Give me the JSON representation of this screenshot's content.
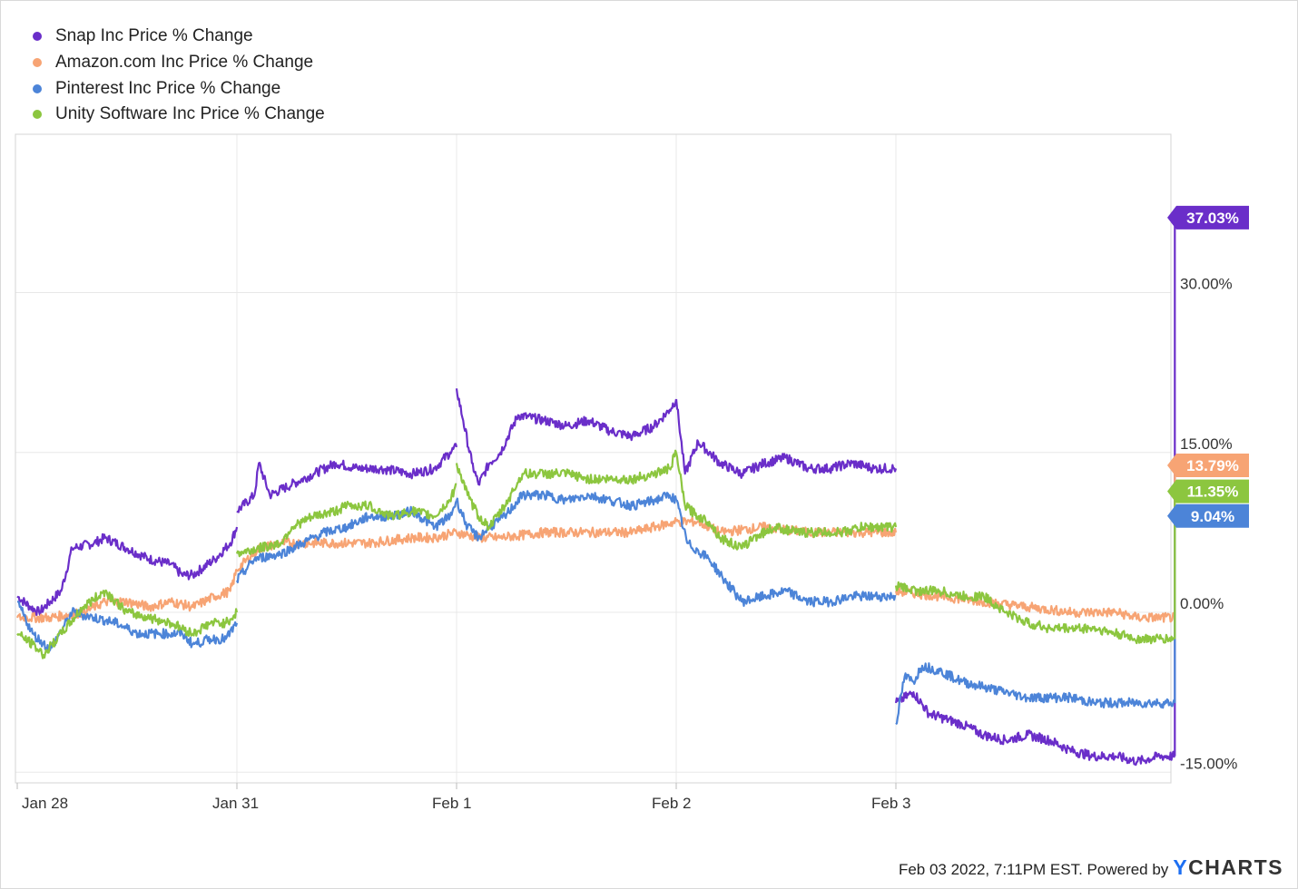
{
  "chart_data": {
    "type": "line",
    "title": "",
    "xlabel": "",
    "ylabel": "",
    "x_ticks": [
      "Jan 28",
      "Jan 31",
      "Feb 1",
      "Feb 2",
      "Feb 3"
    ],
    "y_ticks": [
      {
        "value": 30,
        "label": "30.00%"
      },
      {
        "value": 15,
        "label": "15.00%"
      },
      {
        "value": 0,
        "label": "0.00%"
      },
      {
        "value": -15,
        "label": "-15.00%"
      }
    ],
    "ylim": [
      -16,
      45
    ],
    "grid": true,
    "legend_position": "top-left",
    "series": [
      {
        "name": "Snap Inc Price % Change",
        "color": "#6a2ec9",
        "end_label": "37.03%",
        "segments": [
          [
            [
              0,
              1.5
            ],
            [
              0.06,
              0.5
            ],
            [
              0.1,
              0
            ],
            [
              0.2,
              2
            ],
            [
              0.25,
              6
            ],
            [
              0.35,
              6.5
            ],
            [
              0.4,
              7
            ],
            [
              0.5,
              6
            ],
            [
              0.6,
              5
            ],
            [
              0.7,
              4.5
            ],
            [
              0.75,
              3.5
            ],
            [
              0.8,
              3.5
            ],
            [
              0.9,
              5
            ],
            [
              0.97,
              6.5
            ],
            [
              1.0,
              8
            ]
          ],
          [
            [
              1.0,
              9.5
            ],
            [
              1.08,
              11
            ],
            [
              1.1,
              14
            ],
            [
              1.15,
              11
            ],
            [
              1.25,
              12
            ],
            [
              1.35,
              13
            ],
            [
              1.45,
              14
            ],
            [
              1.55,
              13.5
            ],
            [
              1.65,
              13.5
            ],
            [
              1.8,
              13
            ],
            [
              1.9,
              13.5
            ],
            [
              1.97,
              15
            ],
            [
              2.0,
              15.5
            ]
          ],
          [
            [
              2.0,
              21
            ],
            [
              2.03,
              18
            ],
            [
              2.07,
              14
            ],
            [
              2.1,
              12
            ],
            [
              2.15,
              14
            ],
            [
              2.2,
              15
            ],
            [
              2.28,
              18.5
            ],
            [
              2.4,
              18
            ],
            [
              2.5,
              17.5
            ],
            [
              2.6,
              18
            ],
            [
              2.7,
              17
            ],
            [
              2.8,
              16.5
            ],
            [
              2.9,
              17.5
            ],
            [
              2.97,
              19
            ],
            [
              3.0,
              20
            ]
          ],
          [
            [
              3.0,
              20
            ],
            [
              3.04,
              13
            ],
            [
              3.1,
              16
            ],
            [
              3.2,
              14
            ],
            [
              3.3,
              13
            ],
            [
              3.4,
              14
            ],
            [
              3.5,
              14.5
            ],
            [
              3.6,
              13.5
            ],
            [
              3.7,
              13.5
            ],
            [
              3.8,
              14
            ],
            [
              3.9,
              13.5
            ],
            [
              4.0,
              13.5
            ]
          ],
          [
            [
              4.0,
              -8.5
            ],
            [
              4.08,
              -7.5
            ],
            [
              4.15,
              -9.5
            ],
            [
              4.3,
              -10.5
            ],
            [
              4.4,
              -11.5
            ],
            [
              4.5,
              -12
            ],
            [
              4.6,
              -11.5
            ],
            [
              4.7,
              -12
            ],
            [
              4.8,
              -13
            ],
            [
              4.9,
              -13.5
            ],
            [
              5.0,
              -13.5
            ],
            [
              5.1,
              -14
            ],
            [
              5.2,
              -13.5
            ],
            [
              5.27,
              -13.5
            ]
          ],
          [
            [
              5.27,
              -13.5
            ],
            [
              5.27,
              37.03
            ],
            [
              5.28,
              37.03
            ]
          ]
        ]
      },
      {
        "name": "Amazon.com Inc Price % Change",
        "color": "#f7a474",
        "end_label": "13.79%",
        "segments": [
          [
            [
              0,
              -0.5
            ],
            [
              0.15,
              -0.5
            ],
            [
              0.3,
              0
            ],
            [
              0.4,
              1
            ],
            [
              0.5,
              1
            ],
            [
              0.6,
              0.5
            ],
            [
              0.7,
              1
            ],
            [
              0.8,
              0.5
            ],
            [
              0.9,
              1.5
            ],
            [
              0.97,
              2
            ],
            [
              1.0,
              4
            ]
          ],
          [
            [
              1.0,
              4
            ],
            [
              1.1,
              6
            ],
            [
              1.2,
              6.5
            ],
            [
              1.3,
              6.5
            ],
            [
              1.4,
              6.5
            ],
            [
              1.6,
              6.5
            ],
            [
              1.8,
              7
            ],
            [
              1.9,
              7
            ],
            [
              2.0,
              7.5
            ]
          ],
          [
            [
              2.0,
              7.5
            ],
            [
              2.1,
              7
            ],
            [
              2.2,
              7
            ],
            [
              2.4,
              7.5
            ],
            [
              2.6,
              7.5
            ],
            [
              2.8,
              7.5
            ],
            [
              2.9,
              8
            ],
            [
              3.0,
              8.5
            ]
          ],
          [
            [
              3.0,
              8.5
            ],
            [
              3.1,
              8.5
            ],
            [
              3.2,
              7.5
            ],
            [
              3.4,
              8
            ],
            [
              3.6,
              7.5
            ],
            [
              3.8,
              7.5
            ],
            [
              3.9,
              7.5
            ],
            [
              4.0,
              7.5
            ]
          ],
          [
            [
              4.0,
              2
            ],
            [
              4.2,
              1.5
            ],
            [
              4.4,
              1
            ],
            [
              4.6,
              0.5
            ],
            [
              4.8,
              0
            ],
            [
              5.0,
              0
            ],
            [
              5.1,
              -0.5
            ],
            [
              5.2,
              -0.5
            ],
            [
              5.27,
              -0.5
            ]
          ],
          [
            [
              5.27,
              -0.5
            ],
            [
              5.27,
              13.79
            ],
            [
              5.28,
              13.79
            ]
          ]
        ]
      },
      {
        "name": "Pinterest Inc Price % Change",
        "color": "#4c84d8",
        "end_label": "9.04%",
        "segments": [
          [
            [
              0,
              1
            ],
            [
              0.07,
              -2
            ],
            [
              0.15,
              -3.5
            ],
            [
              0.25,
              0
            ],
            [
              0.35,
              -0.5
            ],
            [
              0.45,
              -1
            ],
            [
              0.55,
              -2
            ],
            [
              0.65,
              -2
            ],
            [
              0.75,
              -2
            ],
            [
              0.8,
              -3
            ],
            [
              0.88,
              -2.5
            ],
            [
              0.95,
              -2.5
            ],
            [
              1.0,
              -1
            ]
          ],
          [
            [
              1.0,
              3
            ],
            [
              1.08,
              5
            ],
            [
              1.2,
              5.5
            ],
            [
              1.3,
              6.5
            ],
            [
              1.4,
              7.5
            ],
            [
              1.5,
              8
            ],
            [
              1.6,
              9
            ],
            [
              1.7,
              9
            ],
            [
              1.8,
              9.5
            ],
            [
              1.9,
              8
            ],
            [
              1.97,
              9
            ],
            [
              2.0,
              10.5
            ]
          ],
          [
            [
              2.0,
              10.5
            ],
            [
              2.05,
              8
            ],
            [
              2.1,
              7
            ],
            [
              2.15,
              8
            ],
            [
              2.22,
              9
            ],
            [
              2.3,
              11
            ],
            [
              2.4,
              11
            ],
            [
              2.5,
              10.5
            ],
            [
              2.6,
              11
            ],
            [
              2.7,
              10.5
            ],
            [
              2.8,
              10
            ],
            [
              2.9,
              10.5
            ],
            [
              2.97,
              11
            ],
            [
              3.0,
              10.5
            ]
          ],
          [
            [
              3.0,
              10.5
            ],
            [
              3.05,
              6.5
            ],
            [
              3.15,
              5
            ],
            [
              3.22,
              3
            ],
            [
              3.3,
              1
            ],
            [
              3.4,
              1.5
            ],
            [
              3.5,
              2
            ],
            [
              3.6,
              1
            ],
            [
              3.7,
              1
            ],
            [
              3.8,
              1.5
            ],
            [
              3.9,
              1.5
            ],
            [
              4.0,
              1.5
            ]
          ],
          [
            [
              4.0,
              -10.5
            ],
            [
              4.04,
              -6
            ],
            [
              4.08,
              -6.5
            ],
            [
              4.12,
              -5
            ],
            [
              4.2,
              -5.5
            ],
            [
              4.3,
              -6.5
            ],
            [
              4.4,
              -7
            ],
            [
              4.5,
              -7.5
            ],
            [
              4.6,
              -8
            ],
            [
              4.7,
              -8
            ],
            [
              4.8,
              -8
            ],
            [
              4.9,
              -8.5
            ],
            [
              5.0,
              -8.5
            ],
            [
              5.1,
              -8.5
            ],
            [
              5.2,
              -8.5
            ],
            [
              5.27,
              -8.5
            ]
          ],
          [
            [
              5.27,
              -8.5
            ],
            [
              5.27,
              9.04
            ],
            [
              5.28,
              9.04
            ]
          ]
        ]
      },
      {
        "name": "Unity Software Inc Price % Change",
        "color": "#8cc63f",
        "end_label": "11.35%",
        "segments": [
          [
            [
              0,
              -2
            ],
            [
              0.07,
              -3
            ],
            [
              0.12,
              -4
            ],
            [
              0.2,
              -2
            ],
            [
              0.3,
              0.5
            ],
            [
              0.4,
              2
            ],
            [
              0.5,
              0
            ],
            [
              0.6,
              -0.5
            ],
            [
              0.7,
              -1
            ],
            [
              0.8,
              -2
            ],
            [
              0.88,
              -1
            ],
            [
              0.95,
              -1
            ],
            [
              1.0,
              0
            ]
          ],
          [
            [
              1.0,
              5.5
            ],
            [
              1.1,
              6
            ],
            [
              1.2,
              6.5
            ],
            [
              1.25,
              8
            ],
            [
              1.35,
              9
            ],
            [
              1.45,
              9.5
            ],
            [
              1.5,
              10
            ],
            [
              1.6,
              10
            ],
            [
              1.7,
              9
            ],
            [
              1.8,
              9.5
            ],
            [
              1.9,
              9
            ],
            [
              1.97,
              10.5
            ],
            [
              2.0,
              12
            ]
          ],
          [
            [
              2.0,
              14
            ],
            [
              2.05,
              11
            ],
            [
              2.1,
              9
            ],
            [
              2.15,
              8
            ],
            [
              2.22,
              10
            ],
            [
              2.3,
              13
            ],
            [
              2.4,
              13
            ],
            [
              2.5,
              13
            ],
            [
              2.6,
              12.5
            ],
            [
              2.7,
              12.5
            ],
            [
              2.8,
              12.5
            ],
            [
              2.9,
              13
            ],
            [
              2.97,
              13.5
            ],
            [
              3.0,
              15
            ]
          ],
          [
            [
              3.0,
              15
            ],
            [
              3.04,
              10
            ],
            [
              3.1,
              9
            ],
            [
              3.15,
              8.5
            ],
            [
              3.2,
              7
            ],
            [
              3.3,
              6
            ],
            [
              3.35,
              7
            ],
            [
              3.45,
              8
            ],
            [
              3.55,
              7.5
            ],
            [
              3.65,
              7.5
            ],
            [
              3.75,
              7.5
            ],
            [
              3.85,
              8
            ],
            [
              3.95,
              8
            ],
            [
              4.0,
              8
            ]
          ],
          [
            [
              4.0,
              2.5
            ],
            [
              4.1,
              2
            ],
            [
              4.2,
              2
            ],
            [
              4.3,
              1.5
            ],
            [
              4.4,
              1.5
            ],
            [
              4.5,
              0
            ],
            [
              4.6,
              -1
            ],
            [
              4.7,
              -1.5
            ],
            [
              4.8,
              -1.5
            ],
            [
              4.9,
              -1.5
            ],
            [
              5.0,
              -2
            ],
            [
              5.1,
              -2.5
            ],
            [
              5.2,
              -2.5
            ],
            [
              5.27,
              -2.5
            ]
          ],
          [
            [
              5.27,
              -2.5
            ],
            [
              5.27,
              11.35
            ],
            [
              5.28,
              11.35
            ]
          ]
        ]
      }
    ]
  },
  "footer": {
    "text": "Feb 03 2022, 7:11PM EST. Powered by",
    "brand_y": "Y",
    "brand_rest": "CHARTS"
  }
}
